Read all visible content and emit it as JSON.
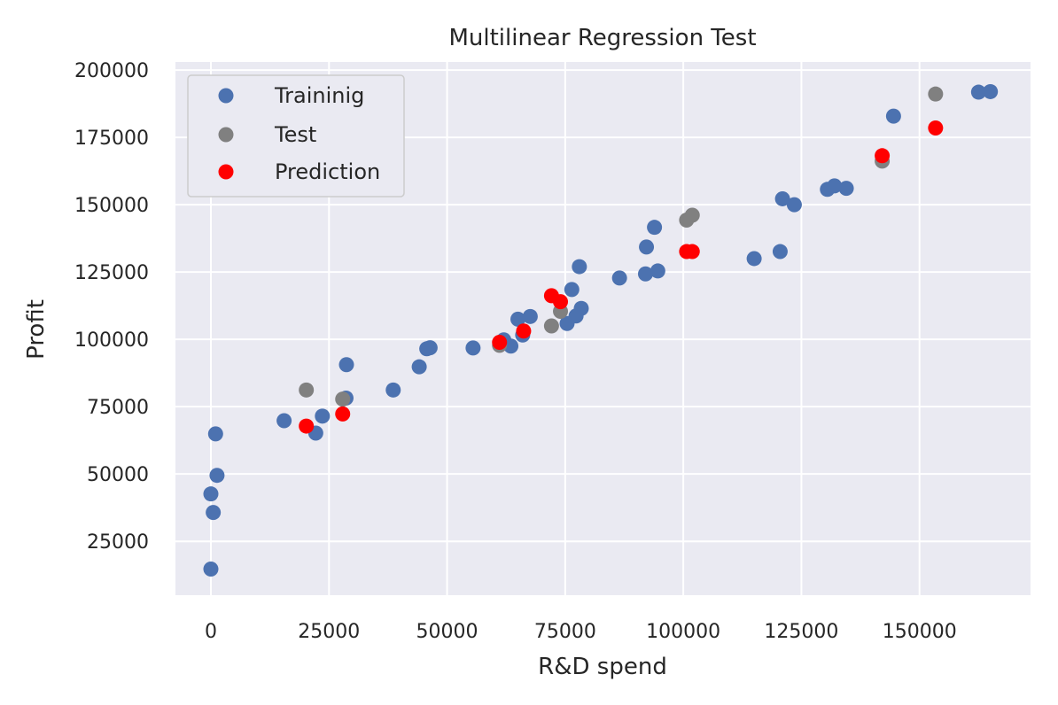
{
  "chart_data": {
    "type": "scatter",
    "title": "Multilinear Regression Test",
    "xlabel": "R&D spend",
    "ylabel": "Profit",
    "xlim": [
      -7500,
      173500
    ],
    "ylim": [
      5000,
      203000
    ],
    "xticks": [
      0,
      25000,
      50000,
      75000,
      100000,
      125000,
      150000
    ],
    "yticks": [
      25000,
      50000,
      75000,
      100000,
      125000,
      150000,
      175000,
      200000
    ],
    "xtick_labels": [
      "0",
      "25000",
      "50000",
      "75000",
      "100000",
      "125000",
      "150000"
    ],
    "ytick_labels": [
      "25000",
      "50000",
      "75000",
      "100000",
      "125000",
      "150000",
      "175000",
      "200000"
    ],
    "grid": true,
    "legend_position": "top-left",
    "series": [
      {
        "name": "Traininig",
        "color": "#4c72b0",
        "points": [
          [
            165000,
            192000
          ],
          [
            162500,
            191800
          ],
          [
            144500,
            182900
          ],
          [
            134500,
            156100
          ],
          [
            132000,
            157000
          ],
          [
            130500,
            155700
          ],
          [
            123500,
            150000
          ],
          [
            121000,
            152200
          ],
          [
            120500,
            132600
          ],
          [
            115000,
            130000
          ],
          [
            94600,
            125400
          ],
          [
            92000,
            124300
          ],
          [
            92200,
            134300
          ],
          [
            93900,
            141600
          ],
          [
            86500,
            122800
          ],
          [
            78000,
            127000
          ],
          [
            78400,
            111500
          ],
          [
            77300,
            108700
          ],
          [
            76400,
            118500
          ],
          [
            75400,
            105900
          ],
          [
            67600,
            108500
          ],
          [
            66000,
            101600
          ],
          [
            65000,
            107500
          ],
          [
            63500,
            97500
          ],
          [
            62000,
            99800
          ],
          [
            55500,
            96800
          ],
          [
            46400,
            96900
          ],
          [
            45700,
            96500
          ],
          [
            44100,
            89800
          ],
          [
            38600,
            81200
          ],
          [
            28700,
            90600
          ],
          [
            28600,
            78200
          ],
          [
            23600,
            71500
          ],
          [
            22200,
            65200
          ],
          [
            15500,
            69800
          ],
          [
            1300,
            49500
          ],
          [
            1000,
            64900
          ],
          [
            500,
            35700
          ],
          [
            0,
            42600
          ],
          [
            0,
            14700
          ]
        ]
      },
      {
        "name": "Test",
        "color": "#808080",
        "points": [
          [
            153400,
            191100
          ],
          [
            142100,
            166200
          ],
          [
            101900,
            146100
          ],
          [
            100700,
            144300
          ],
          [
            74000,
            110400
          ],
          [
            72100,
            105000
          ],
          [
            61100,
            97800
          ],
          [
            27900,
            77800
          ],
          [
            20200,
            81200
          ]
        ]
      },
      {
        "name": "Prediction",
        "color": "#ff0000",
        "points": [
          [
            153400,
            178500
          ],
          [
            142100,
            168200
          ],
          [
            101900,
            132600
          ],
          [
            100700,
            132600
          ],
          [
            74000,
            114000
          ],
          [
            72100,
            116200
          ],
          [
            66200,
            103100
          ],
          [
            61100,
            98900
          ],
          [
            27900,
            72300
          ],
          [
            20200,
            67800
          ]
        ]
      }
    ]
  }
}
